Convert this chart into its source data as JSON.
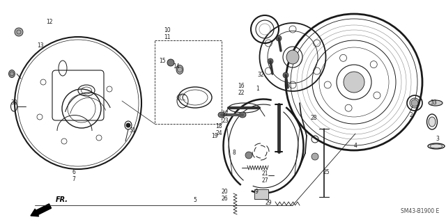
{
  "bg_color": "#ffffff",
  "fig_width": 6.4,
  "fig_height": 3.19,
  "dpi": 100,
  "diagram_code": "SM43-B1900 E",
  "fr_label": "FR.",
  "line_color": "#1a1a1a",
  "gray": "#888888",
  "darkgray": "#444444"
}
